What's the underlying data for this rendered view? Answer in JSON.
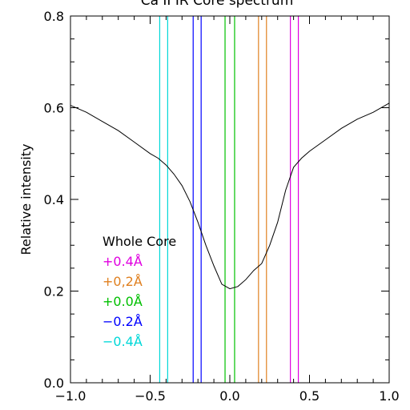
{
  "chart_data": {
    "type": "line",
    "title": "Ca II IR Core spectrum",
    "xlabel": "",
    "ylabel": "Relative intensity",
    "xlim": [
      -1.0,
      1.0
    ],
    "ylim": [
      0.0,
      0.8
    ],
    "x_ticks": [
      "−1.0",
      "−0.5",
      "0.0",
      "0.5",
      "1.0"
    ],
    "x_tick_values": [
      -1.0,
      -0.5,
      0.0,
      0.5,
      1.0
    ],
    "y_ticks": [
      "0.0",
      "0.2",
      "0.4",
      "0.6",
      "0.8"
    ],
    "y_tick_values": [
      0.0,
      0.2,
      0.4,
      0.6,
      0.8
    ],
    "grid": false,
    "series": [
      {
        "color": "#000000",
        "x": [
          -1.0,
          -0.9,
          -0.8,
          -0.7,
          -0.6,
          -0.5,
          -0.45,
          -0.4,
          -0.35,
          -0.3,
          -0.25,
          -0.2,
          -0.15,
          -0.1,
          -0.05,
          0.0,
          0.05,
          0.1,
          0.15,
          0.2,
          0.25,
          0.3,
          0.35,
          0.4,
          0.45,
          0.5,
          0.6,
          0.7,
          0.8,
          0.9,
          1.0
        ],
        "y": [
          0.605,
          0.59,
          0.57,
          0.55,
          0.525,
          0.5,
          0.49,
          0.475,
          0.455,
          0.43,
          0.395,
          0.35,
          0.3,
          0.255,
          0.215,
          0.205,
          0.21,
          0.225,
          0.245,
          0.26,
          0.3,
          0.35,
          0.42,
          0.47,
          0.49,
          0.505,
          0.53,
          0.555,
          0.575,
          0.59,
          0.61
        ]
      }
    ],
    "vertical_line_pairs": [
      {
        "color": "#00d8d8",
        "x": [
          -0.44,
          -0.39
        ]
      },
      {
        "color": "#0000ff",
        "x": [
          -0.23,
          -0.18
        ]
      },
      {
        "color": "#00c000",
        "x": [
          -0.03,
          0.03
        ]
      },
      {
        "color": "#e08020",
        "x": [
          0.18,
          0.23
        ]
      },
      {
        "color": "#e000e0",
        "x": [
          0.38,
          0.43
        ]
      }
    ],
    "legend_position": "lower-left",
    "legend": [
      {
        "label": "Whole Core",
        "color": "#000000"
      },
      {
        "label": "+0.4Å",
        "color": "#e000e0"
      },
      {
        "label": "+0,2Å",
        "color": "#e08020"
      },
      {
        "label": "+0.0Å",
        "color": "#00c000"
      },
      {
        "label": "−0.2Å",
        "color": "#0000ff"
      },
      {
        "label": "−0.4Å",
        "color": "#00d8d8"
      }
    ]
  }
}
